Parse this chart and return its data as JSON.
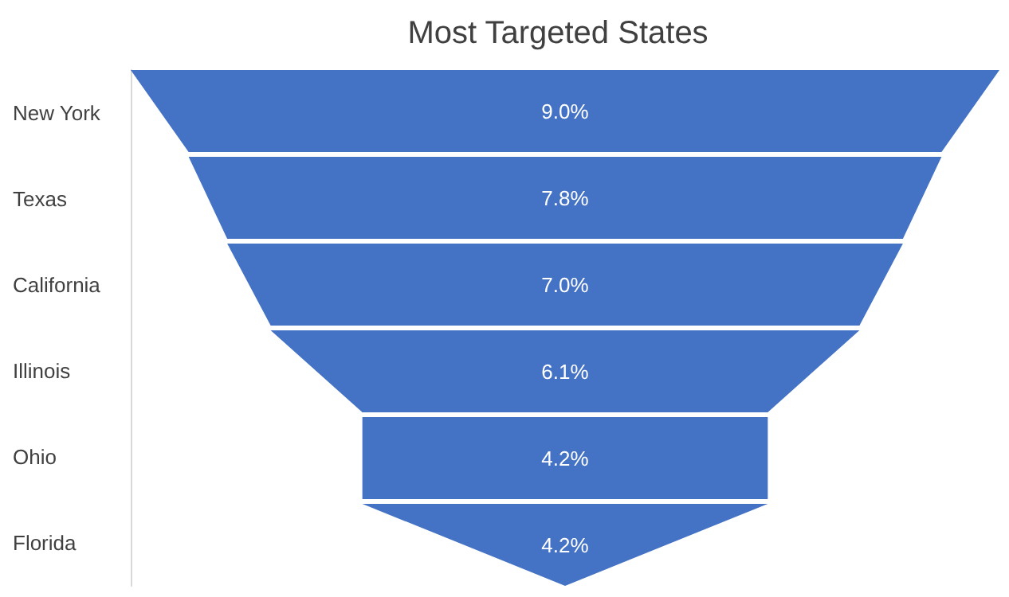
{
  "chart_data": {
    "type": "other",
    "title": "Most Targeted States",
    "categories": [
      "New York",
      "Texas",
      "California",
      "Illinois",
      "Ohio",
      "Florida"
    ],
    "values": [
      9.0,
      7.8,
      7.0,
      6.1,
      4.2,
      4.2
    ],
    "value_labels": [
      "9.0%",
      "7.8%",
      "7.0%",
      "6.1%",
      "4.2%",
      "4.2%"
    ],
    "color": "#4472c4"
  }
}
